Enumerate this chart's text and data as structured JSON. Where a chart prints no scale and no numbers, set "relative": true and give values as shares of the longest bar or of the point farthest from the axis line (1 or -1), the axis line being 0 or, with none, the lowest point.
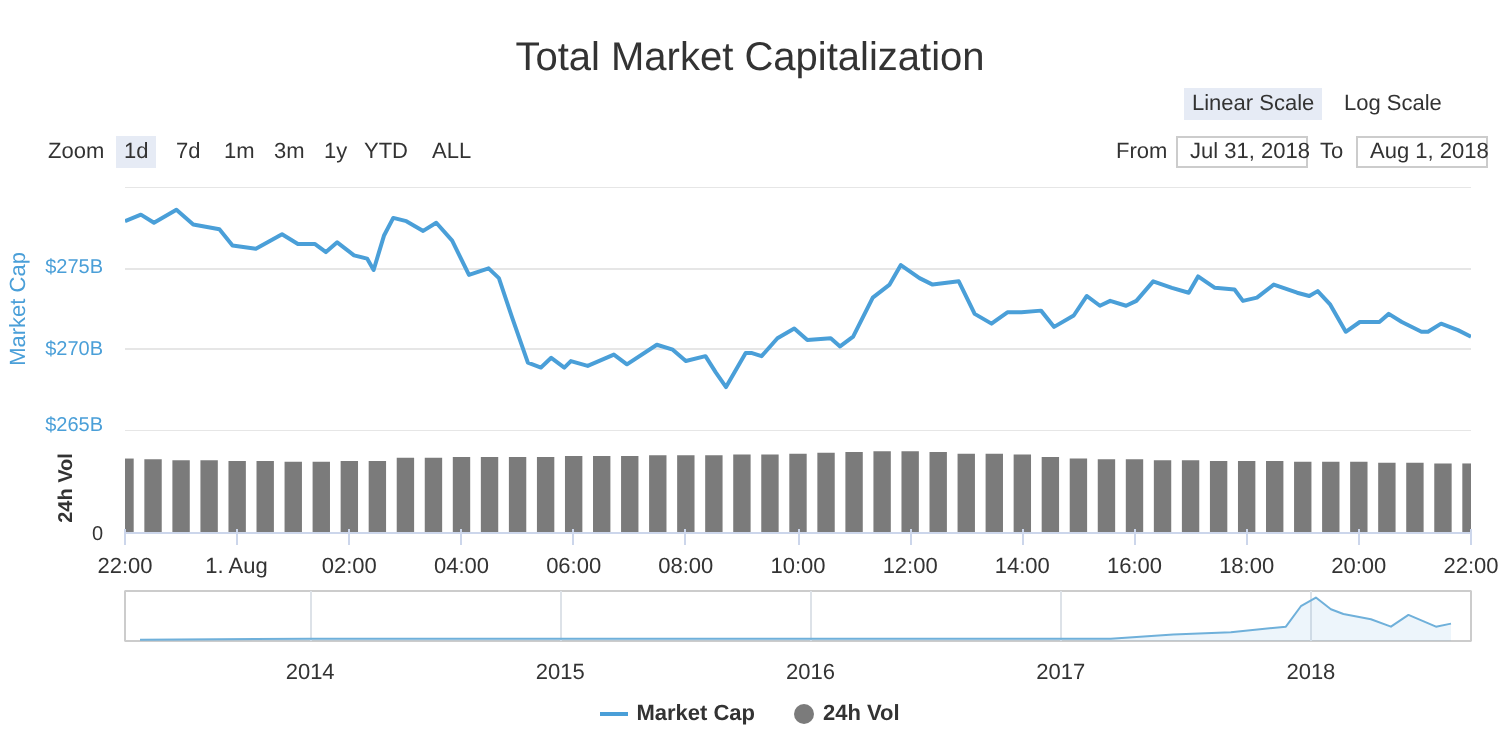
{
  "chart_data": [
    {
      "type": "line",
      "title": "Total Market Capitalization",
      "ylabel": "Market Cap",
      "xlim": [
        "2018-07-31T22:00",
        "2018-08-01T22:00"
      ],
      "ylim": [
        265,
        280
      ],
      "yticks": [
        {
          "value": 265,
          "label": "$265B"
        },
        {
          "value": 270,
          "label": "$270B"
        },
        {
          "value": 275,
          "label": "$275B"
        },
        {
          "value": 280,
          "label": null
        }
      ],
      "grid": "y",
      "tick_labels": "y",
      "legend": "bottom",
      "x": [
        "2018-07-31T22:00",
        "2018-07-31T22:17",
        "2018-07-31T22:31",
        "2018-07-31T22:55",
        "2018-07-31T23:13",
        "2018-07-31T23:41",
        "2018-07-31T23:55",
        "2018-08-01T00:20",
        "2018-08-01T00:48",
        "2018-08-01T01:05",
        "2018-08-01T01:23",
        "2018-08-01T01:35",
        "2018-08-01T01:47",
        "2018-08-01T02:05",
        "2018-08-01T02:19",
        "2018-08-01T02:26",
        "2018-08-01T02:37",
        "2018-08-01T02:47",
        "2018-08-01T03:01",
        "2018-08-01T03:19",
        "2018-08-01T03:33",
        "2018-08-01T03:50",
        "2018-08-01T04:08",
        "2018-08-01T04:29",
        "2018-08-01T04:40",
        "2018-08-01T04:54",
        "2018-08-01T05:11",
        "2018-08-01T05:25",
        "2018-08-01T05:36",
        "2018-08-01T05:50",
        "2018-08-01T05:57",
        "2018-08-01T06:15",
        "2018-08-01T06:43",
        "2018-08-01T06:57",
        "2018-08-01T07:29",
        "2018-08-01T07:46",
        "2018-08-01T08:00",
        "2018-08-01T08:21",
        "2018-08-01T08:32",
        "2018-08-01T08:43",
        "2018-08-01T09:04",
        "2018-08-01T09:10",
        "2018-08-01T09:21",
        "2018-08-01T09:38",
        "2018-08-01T09:56",
        "2018-08-01T10:10",
        "2018-08-01T10:35",
        "2018-08-01T10:45",
        "2018-08-01T10:59",
        "2018-08-01T11:20",
        "2018-08-01T11:38",
        "2018-08-01T11:50",
        "2018-08-01T12:10",
        "2018-08-01T12:24",
        "2018-08-01T12:52",
        "2018-08-01T13:09",
        "2018-08-01T13:27",
        "2018-08-01T13:44",
        "2018-08-01T13:59",
        "2018-08-01T14:20",
        "2018-08-01T14:34",
        "2018-08-01T14:55",
        "2018-08-01T15:09",
        "2018-08-01T15:23",
        "2018-08-01T15:34",
        "2018-08-01T15:51",
        "2018-08-01T16:02",
        "2018-08-01T16:20",
        "2018-08-01T16:40",
        "2018-08-01T16:58",
        "2018-08-01T17:08",
        "2018-08-01T17:26",
        "2018-08-01T17:47",
        "2018-08-01T17:56",
        "2018-08-01T18:11",
        "2018-08-01T18:29",
        "2018-08-01T18:54",
        "2018-08-01T19:07",
        "2018-08-01T19:16",
        "2018-08-01T19:29",
        "2018-08-01T19:46",
        "2018-08-01T20:01",
        "2018-08-01T20:22",
        "2018-08-01T20:32",
        "2018-08-01T20:46",
        "2018-08-01T21:07",
        "2018-08-01T21:14",
        "2018-08-01T21:28",
        "2018-08-01T21:46",
        "2018-08-01T22:00"
      ],
      "series": [
        {
          "name": "Market Cap",
          "color": "#4a9fd8",
          "values": [
            277.9,
            278.3,
            277.8,
            278.6,
            277.7,
            277.4,
            276.4,
            276.2,
            277.1,
            276.5,
            276.5,
            276.0,
            276.6,
            275.8,
            275.6,
            274.9,
            277.0,
            278.1,
            277.9,
            277.3,
            277.8,
            276.7,
            274.6,
            275.0,
            274.4,
            272.0,
            269.2,
            268.9,
            269.5,
            268.9,
            269.3,
            269.0,
            269.7,
            269.1,
            270.3,
            270.0,
            269.3,
            269.6,
            268.6,
            267.7,
            269.8,
            269.8,
            269.6,
            270.7,
            271.3,
            270.6,
            270.7,
            270.2,
            270.8,
            273.2,
            274.0,
            275.2,
            274.4,
            274.0,
            274.2,
            272.2,
            271.6,
            272.3,
            272.3,
            272.4,
            271.4,
            272.1,
            273.3,
            272.7,
            273.0,
            272.7,
            273.0,
            274.2,
            273.8,
            273.5,
            274.5,
            273.8,
            273.7,
            273.0,
            273.2,
            274.0,
            273.5,
            273.3,
            273.6,
            272.8,
            271.1,
            271.7,
            271.7,
            272.2,
            271.7,
            271.1,
            271.1,
            271.6,
            271.2,
            270.8
          ]
        }
      ],
      "annotations": [
        "Linear Scale",
        "Log Scale",
        "Zoom",
        "1d",
        "7d",
        "1m",
        "3m",
        "1y",
        "YTD",
        "ALL",
        "From",
        "Jul 31, 2018",
        "To",
        "Aug 1, 2018"
      ]
    },
    {
      "type": "bar",
      "relative": true,
      "ylabel": "24h Vol",
      "xlim": [
        "2018-07-31T22:00",
        "2018-08-01T22:00"
      ],
      "xticks": [
        {
          "value": "2018-07-31T22:00",
          "label": "22:00"
        },
        {
          "value": "2018-08-01T00:00",
          "label": "1. Aug"
        },
        {
          "value": "2018-08-01T02:00",
          "label": "02:00"
        },
        {
          "value": "2018-08-01T04:00",
          "label": "04:00"
        },
        {
          "value": "2018-08-01T06:00",
          "label": "06:00"
        },
        {
          "value": "2018-08-01T08:00",
          "label": "08:00"
        },
        {
          "value": "2018-08-01T10:00",
          "label": "10:00"
        },
        {
          "value": "2018-08-01T12:00",
          "label": "12:00"
        },
        {
          "value": "2018-08-01T14:00",
          "label": "14:00"
        },
        {
          "value": "2018-08-01T16:00",
          "label": "16:00"
        },
        {
          "value": "2018-08-01T18:00",
          "label": "18:00"
        },
        {
          "value": "2018-08-01T20:00",
          "label": "20:00"
        },
        {
          "value": "2018-08-01T22:00",
          "label": "22:00"
        }
      ],
      "tick_labels": "x",
      "legend": "bottom",
      "x": [
        "2018-07-31T22:00",
        "2018-07-31T22:30",
        "2018-07-31T23:00",
        "2018-07-31T23:30",
        "2018-08-01T00:00",
        "2018-08-01T00:30",
        "2018-08-01T01:00",
        "2018-08-01T01:30",
        "2018-08-01T02:00",
        "2018-08-01T02:30",
        "2018-08-01T03:00",
        "2018-08-01T03:30",
        "2018-08-01T04:00",
        "2018-08-01T04:30",
        "2018-08-01T05:00",
        "2018-08-01T05:30",
        "2018-08-01T06:00",
        "2018-08-01T06:30",
        "2018-08-01T07:00",
        "2018-08-01T07:30",
        "2018-08-01T08:00",
        "2018-08-01T08:30",
        "2018-08-01T09:00",
        "2018-08-01T09:30",
        "2018-08-01T10:00",
        "2018-08-01T10:30",
        "2018-08-01T11:00",
        "2018-08-01T11:30",
        "2018-08-01T12:00",
        "2018-08-01T12:30",
        "2018-08-01T13:00",
        "2018-08-01T13:30",
        "2018-08-01T14:00",
        "2018-08-01T14:30",
        "2018-08-01T15:00",
        "2018-08-01T15:30",
        "2018-08-01T16:00",
        "2018-08-01T16:30",
        "2018-08-01T17:00",
        "2018-08-01T17:30",
        "2018-08-01T18:00",
        "2018-08-01T18:30",
        "2018-08-01T19:00",
        "2018-08-01T19:30",
        "2018-08-01T20:00",
        "2018-08-01T20:30",
        "2018-08-01T21:00",
        "2018-08-01T21:30",
        "2018-08-01T22:00"
      ],
      "series": [
        {
          "name": "24h Vol",
          "color": "#7b7b7b",
          "values": [
            0.91,
            0.9,
            0.89,
            0.89,
            0.88,
            0.88,
            0.87,
            0.87,
            0.88,
            0.88,
            0.92,
            0.92,
            0.93,
            0.93,
            0.93,
            0.93,
            0.94,
            0.94,
            0.94,
            0.95,
            0.95,
            0.95,
            0.96,
            0.96,
            0.97,
            0.98,
            0.99,
            1,
            1,
            0.99,
            0.97,
            0.97,
            0.96,
            0.93,
            0.91,
            0.9,
            0.9,
            0.89,
            0.89,
            0.88,
            0.88,
            0.88,
            0.87,
            0.87,
            0.87,
            0.86,
            0.86,
            0.85,
            0.85
          ]
        }
      ],
      "annotations": [
        "0"
      ]
    },
    {
      "type": "area",
      "relative": true,
      "xlim": [
        2013.26,
        2018.64
      ],
      "xticks": [
        2014,
        2015,
        2016,
        2017,
        2018
      ],
      "grid": "x",
      "tick_labels": "x",
      "x": [
        2013.32,
        2014,
        2016.9,
        2017.2,
        2017.45,
        2017.68,
        2017.9,
        2017.96,
        2018.02,
        2018.08,
        2018.13,
        2018.24,
        2018.32,
        2018.39,
        2018.5,
        2018.56
      ],
      "series": [
        {
          "color": "#6fb0da",
          "values": [
            0.03,
            0.05,
            0.05,
            0.05,
            0.15,
            0.2,
            0.33,
            0.8,
            1,
            0.73,
            0.62,
            0.5,
            0.33,
            0.6,
            0.33,
            0.4
          ]
        }
      ]
    }
  ]
}
